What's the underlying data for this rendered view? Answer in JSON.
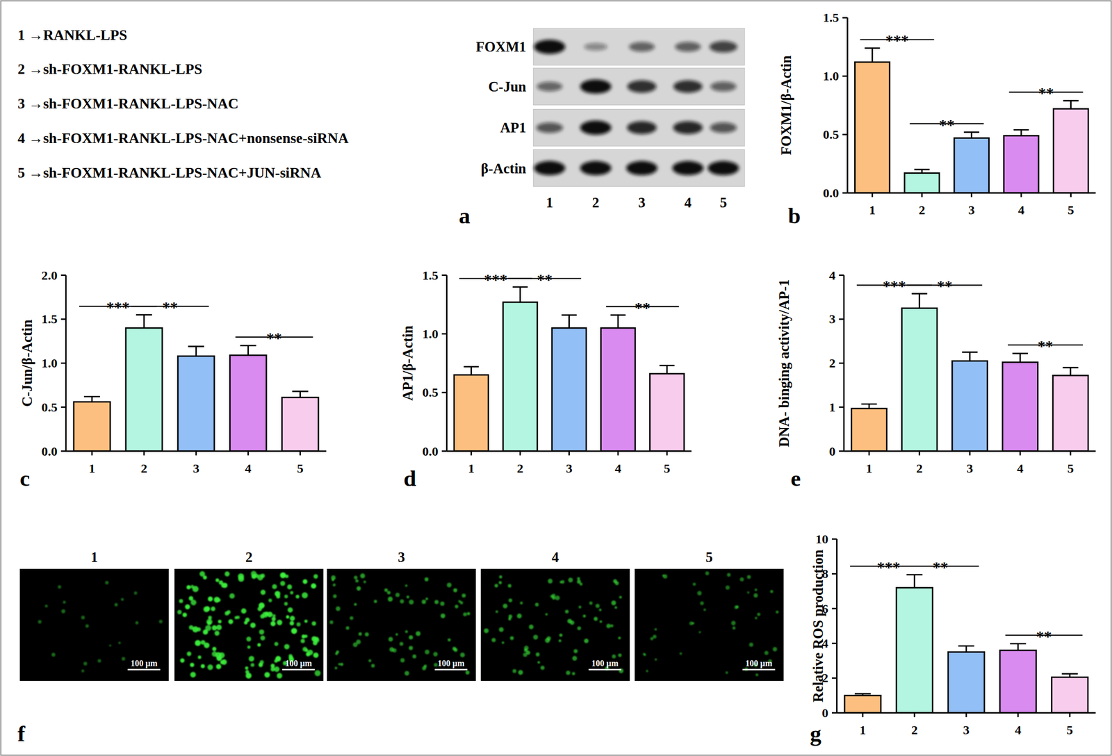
{
  "groups": {
    "items": [
      "1 →RANKL-LPS",
      "2 →sh-FOXM1-RANKL-LPS",
      "3 →sh-FOXM1-RANKL-LPS-NAC",
      "4 →sh-FOXM1-RANKL-LPS-NAC+nonsense-siRNA",
      "5 →sh-FOXM1-RANKL-LPS-NAC+JUN-siRNA"
    ]
  },
  "blot": {
    "panel": "a",
    "rows": [
      "FOXM1",
      "C-Jun",
      "AP1",
      "β-Actin"
    ],
    "lanes": [
      "1",
      "2",
      "3",
      "4",
      "5"
    ]
  },
  "micrographs": {
    "panel": "f",
    "labels": [
      "1",
      "2",
      "3",
      "4",
      "5"
    ],
    "scale_bar": "100 μm"
  },
  "chart_data": [
    {
      "type": "bar",
      "panel": "b",
      "y_label": "FOXM1/β-Actin",
      "categories": [
        "1",
        "2",
        "3",
        "4",
        "5"
      ],
      "values": [
        1.12,
        0.17,
        0.47,
        0.49,
        0.72
      ],
      "errors": [
        0.12,
        0.03,
        0.05,
        0.05,
        0.07
      ],
      "colors": [
        "#FDBF7F",
        "#B3F5E0",
        "#93BFF7",
        "#DA8BF0",
        "#F8CCEC"
      ],
      "ylim": [
        0,
        1.5
      ],
      "yticks": [
        {
          "value": 0,
          "label": "0.0"
        },
        {
          "value": 0.5,
          "label": "0.5"
        },
        {
          "value": 1,
          "label": "1.0"
        },
        {
          "value": 1.5,
          "label": "1.5"
        }
      ],
      "annotations": [
        {
          "text": "***",
          "between": [
            "1",
            "2"
          ]
        },
        {
          "text": "**",
          "between": [
            "2",
            "3"
          ]
        },
        {
          "text": "**",
          "between": [
            "4",
            "5"
          ]
        }
      ]
    },
    {
      "type": "bar",
      "panel": "c",
      "y_label": "C-Jun/β-Actin",
      "categories": [
        "1",
        "2",
        "3",
        "4",
        "5"
      ],
      "values": [
        0.56,
        1.4,
        1.08,
        1.09,
        0.61
      ],
      "errors": [
        0.06,
        0.15,
        0.11,
        0.11,
        0.07
      ],
      "colors": [
        "#FDBF7F",
        "#B3F5E0",
        "#93BFF7",
        "#DA8BF0",
        "#F8CCEC"
      ],
      "ylim": [
        0,
        2
      ],
      "yticks": [
        {
          "value": 0,
          "label": "0.0"
        },
        {
          "value": 0.5,
          "label": "0.5"
        },
        {
          "value": 1,
          "label": "1.0"
        },
        {
          "value": 1.5,
          "label": "1.5"
        },
        {
          "value": 2,
          "label": "2.0"
        }
      ],
      "annotations": [
        {
          "text": "***",
          "between": [
            "1",
            "2"
          ]
        },
        {
          "text": "**",
          "between": [
            "2",
            "3"
          ]
        },
        {
          "text": "**",
          "between": [
            "4",
            "5"
          ]
        }
      ]
    },
    {
      "type": "bar",
      "panel": "d",
      "y_label": "AP1/β-Actin",
      "categories": [
        "1",
        "2",
        "3",
        "4",
        "5"
      ],
      "values": [
        0.65,
        1.27,
        1.05,
        1.05,
        0.66
      ],
      "errors": [
        0.07,
        0.13,
        0.11,
        0.11,
        0.07
      ],
      "colors": [
        "#FDBF7F",
        "#B3F5E0",
        "#93BFF7",
        "#DA8BF0",
        "#F8CCEC"
      ],
      "ylim": [
        0,
        1.5
      ],
      "yticks": [
        {
          "value": 0,
          "label": "0.0"
        },
        {
          "value": 0.5,
          "label": "0.5"
        },
        {
          "value": 1,
          "label": "1.0"
        },
        {
          "value": 1.5,
          "label": "1.5"
        }
      ],
      "annotations": [
        {
          "text": "***",
          "between": [
            "1",
            "2"
          ]
        },
        {
          "text": "**",
          "between": [
            "2",
            "3"
          ]
        },
        {
          "text": "**",
          "between": [
            "4",
            "5"
          ]
        }
      ]
    },
    {
      "type": "bar",
      "panel": "e",
      "y_label": "DNA- binging activity/AP-1",
      "categories": [
        "1",
        "2",
        "3",
        "4",
        "5"
      ],
      "values": [
        0.97,
        3.25,
        2.05,
        2.02,
        1.72
      ],
      "errors": [
        0.1,
        0.33,
        0.2,
        0.2,
        0.18
      ],
      "colors": [
        "#FDBF7F",
        "#B3F5E0",
        "#93BFF7",
        "#DA8BF0",
        "#F8CCEC"
      ],
      "ylim": [
        0,
        4
      ],
      "yticks": [
        0,
        1,
        2,
        3,
        4
      ],
      "annotations": [
        {
          "text": "***",
          "between": [
            "1",
            "2"
          ]
        },
        {
          "text": "**",
          "between": [
            "2",
            "3"
          ]
        },
        {
          "text": "**",
          "between": [
            "4",
            "5"
          ]
        }
      ]
    },
    {
      "type": "bar",
      "panel": "g",
      "y_label": "Relative ROS production",
      "categories": [
        "1",
        "2",
        "3",
        "4",
        "5"
      ],
      "values": [
        1.0,
        7.2,
        3.5,
        3.6,
        2.05
      ],
      "errors": [
        0.1,
        0.75,
        0.35,
        0.38,
        0.2
      ],
      "colors": [
        "#FDBF7F",
        "#B3F5E0",
        "#93BFF7",
        "#DA8BF0",
        "#F8CCEC"
      ],
      "ylim": [
        0,
        10
      ],
      "yticks": [
        0,
        2,
        4,
        6,
        8,
        10
      ],
      "annotations": [
        {
          "text": "***",
          "between": [
            "1",
            "2"
          ]
        },
        {
          "text": "**",
          "between": [
            "2",
            "3"
          ]
        },
        {
          "text": "**",
          "between": [
            "4",
            "5"
          ]
        }
      ]
    }
  ]
}
